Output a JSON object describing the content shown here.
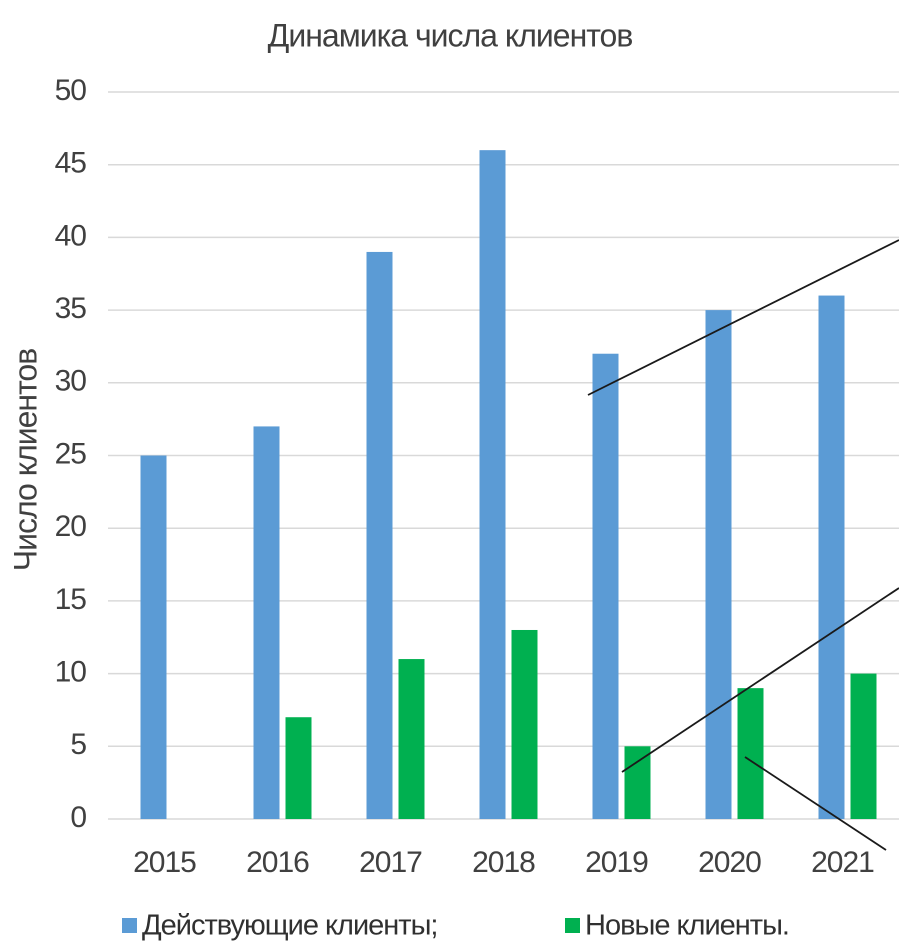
{
  "chart_data": {
    "type": "bar",
    "title": "Динамика числа клиентов",
    "y_label": "Число клиентов",
    "categories": [
      "2015",
      "2016",
      "2017",
      "2018",
      "2019",
      "2020",
      "2021"
    ],
    "series": [
      {
        "name": "Действующие клиенты;",
        "color": "#5b9bd5",
        "values": [
          25,
          27,
          39,
          46,
          32,
          35,
          36
        ]
      },
      {
        "name": "Новые клиенты.",
        "color": "#00b050",
        "values": [
          null,
          7,
          11,
          13,
          5,
          9,
          10
        ]
      }
    ],
    "ylim": [
      0,
      50
    ],
    "yticks": [
      0,
      5,
      10,
      15,
      20,
      25,
      30,
      35,
      40,
      45,
      50
    ],
    "grid": true,
    "legend": "bottom"
  }
}
